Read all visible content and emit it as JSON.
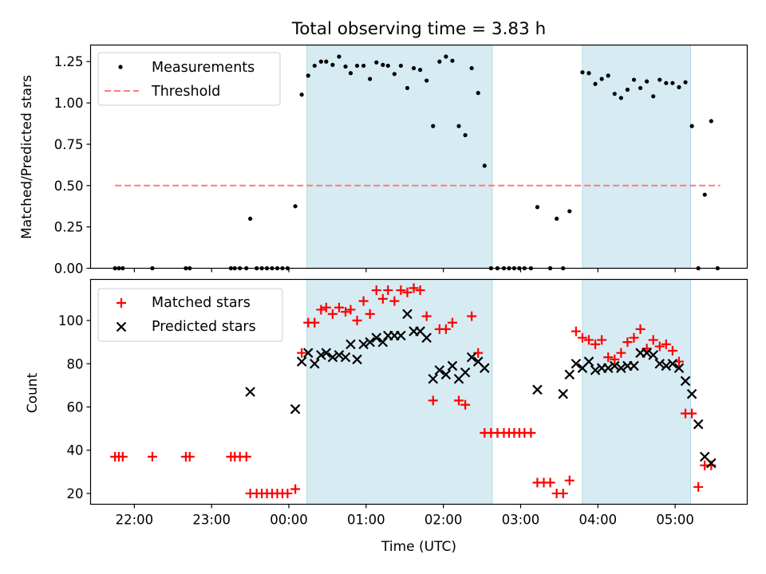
{
  "chart_data": [
    {
      "type": "scatter",
      "title": "Total observing time = 3.83 h",
      "xlabel": "",
      "ylabel": "Matched/Predicted stars",
      "xlim": [
        "21:26",
        "05:56"
      ],
      "ylim": [
        0,
        1.35
      ],
      "y_ticks": [
        0.0,
        0.25,
        0.5,
        0.75,
        1.0,
        1.25
      ],
      "y_tick_labels": [
        "0.00",
        "0.25",
        "0.50",
        "0.75",
        "1.00",
        "1.25"
      ],
      "x_ticks": [
        "22:00",
        "23:00",
        "00:00",
        "01:00",
        "02:00",
        "03:00",
        "04:00",
        "05:00"
      ],
      "x_tick_labels_visible": false,
      "legend": {
        "placement": "upper-left",
        "entries": [
          "Measurements",
          "Threshold"
        ]
      },
      "shaded_intervals": [
        [
          "00:14",
          "02:38"
        ],
        [
          "03:48",
          "05:12"
        ]
      ],
      "threshold": {
        "name": "Threshold",
        "value": 0.5,
        "x_range": [
          "21:45",
          "05:35"
        ],
        "color": "#ff7b7b",
        "style": "dashed"
      },
      "series": [
        {
          "name": "Measurements",
          "color": "#000000",
          "points": [
            [
              "21:45",
              0
            ],
            [
              "21:48",
              0
            ],
            [
              "21:51",
              0
            ],
            [
              "22:14",
              0
            ],
            [
              "22:40",
              0
            ],
            [
              "22:43",
              0
            ],
            [
              "23:15",
              0
            ],
            [
              "23:18",
              0
            ],
            [
              "23:22",
              0
            ],
            [
              "23:27",
              0
            ],
            [
              "23:30",
              0.3
            ],
            [
              "23:35",
              0
            ],
            [
              "23:39",
              0
            ],
            [
              "23:43",
              0
            ],
            [
              "23:47",
              0
            ],
            [
              "23:51",
              0
            ],
            [
              "23:55",
              0
            ],
            [
              "23:59",
              0
            ],
            [
              "00:05",
              0.375
            ],
            [
              "00:10",
              1.05
            ],
            [
              "00:15",
              1.165
            ],
            [
              "00:20",
              1.225
            ],
            [
              "00:25",
              1.25
            ],
            [
              "00:29",
              1.25
            ],
            [
              "00:34",
              1.23
            ],
            [
              "00:39",
              1.28
            ],
            [
              "00:44",
              1.22
            ],
            [
              "00:48",
              1.18
            ],
            [
              "00:53",
              1.225
            ],
            [
              "00:58",
              1.225
            ],
            [
              "01:03",
              1.145
            ],
            [
              "01:08",
              1.245
            ],
            [
              "01:13",
              1.23
            ],
            [
              "01:17",
              1.225
            ],
            [
              "01:22",
              1.175
            ],
            [
              "01:27",
              1.225
            ],
            [
              "01:32",
              1.09
            ],
            [
              "01:37",
              1.21
            ],
            [
              "01:42",
              1.2
            ],
            [
              "01:47",
              1.135
            ],
            [
              "01:52",
              0.86
            ],
            [
              "01:57",
              1.25
            ],
            [
              "02:02",
              1.28
            ],
            [
              "02:07",
              1.255
            ],
            [
              "02:12",
              0.86
            ],
            [
              "02:17",
              0.805
            ],
            [
              "02:22",
              1.21
            ],
            [
              "02:27",
              1.06
            ],
            [
              "02:32",
              0.62
            ],
            [
              "02:37",
              0
            ],
            [
              "02:42",
              0
            ],
            [
              "02:47",
              0
            ],
            [
              "02:51",
              0
            ],
            [
              "02:55",
              0
            ],
            [
              "02:59",
              0
            ],
            [
              "03:03",
              0
            ],
            [
              "03:08",
              0
            ],
            [
              "03:13",
              0.37
            ],
            [
              "03:23",
              0
            ],
            [
              "03:28",
              0.3
            ],
            [
              "03:33",
              0
            ],
            [
              "03:38",
              0.345
            ],
            [
              "03:48",
              1.185
            ],
            [
              "03:53",
              1.18
            ],
            [
              "03:58",
              1.115
            ],
            [
              "04:03",
              1.145
            ],
            [
              "04:08",
              1.165
            ],
            [
              "04:13",
              1.055
            ],
            [
              "04:18",
              1.03
            ],
            [
              "04:23",
              1.08
            ],
            [
              "04:28",
              1.14
            ],
            [
              "04:33",
              1.09
            ],
            [
              "04:38",
              1.13
            ],
            [
              "04:43",
              1.04
            ],
            [
              "04:48",
              1.14
            ],
            [
              "04:53",
              1.12
            ],
            [
              "04:58",
              1.12
            ],
            [
              "05:03",
              1.095
            ],
            [
              "05:08",
              1.125
            ],
            [
              "05:13",
              0.86
            ],
            [
              "05:18",
              0
            ],
            [
              "05:23",
              0.445
            ],
            [
              "05:28",
              0.89
            ],
            [
              "05:33",
              0
            ]
          ]
        }
      ]
    },
    {
      "type": "scatter",
      "title": "",
      "xlabel": "Time (UTC)",
      "ylabel": "Count",
      "xlim": [
        "21:26",
        "05:56"
      ],
      "ylim": [
        15,
        119
      ],
      "y_ticks": [
        20,
        40,
        60,
        80,
        100
      ],
      "y_tick_labels": [
        "20",
        "40",
        "60",
        "80",
        "100"
      ],
      "x_ticks": [
        "22:00",
        "23:00",
        "00:00",
        "01:00",
        "02:00",
        "03:00",
        "04:00",
        "05:00"
      ],
      "x_tick_labels": [
        "22:00",
        "23:00",
        "00:00",
        "01:00",
        "02:00",
        "03:00",
        "04:00",
        "05:00"
      ],
      "legend": {
        "placement": "upper-left",
        "entries": [
          "Matched stars",
          "Predicted stars"
        ]
      },
      "shaded_intervals": [
        [
          "00:14",
          "02:38"
        ],
        [
          "03:48",
          "05:12"
        ]
      ],
      "series": [
        {
          "name": "Matched stars",
          "marker": "plus",
          "color": "#ff0000",
          "points": [
            [
              "21:45",
              37
            ],
            [
              "21:48",
              37
            ],
            [
              "21:51",
              37
            ],
            [
              "22:14",
              37
            ],
            [
              "22:40",
              37
            ],
            [
              "22:43",
              37
            ],
            [
              "23:15",
              37
            ],
            [
              "23:18",
              37
            ],
            [
              "23:22",
              37
            ],
            [
              "23:27",
              37
            ],
            [
              "23:30",
              20
            ],
            [
              "23:35",
              20
            ],
            [
              "23:39",
              20
            ],
            [
              "23:43",
              20
            ],
            [
              "23:47",
              20
            ],
            [
              "23:51",
              20
            ],
            [
              "23:55",
              20
            ],
            [
              "23:59",
              20
            ],
            [
              "00:05",
              22
            ],
            [
              "00:10",
              85
            ],
            [
              "00:15",
              99
            ],
            [
              "00:20",
              99
            ],
            [
              "00:25",
              105
            ],
            [
              "00:29",
              106
            ],
            [
              "00:34",
              103
            ],
            [
              "00:39",
              106
            ],
            [
              "00:44",
              104
            ],
            [
              "00:48",
              105
            ],
            [
              "00:53",
              100
            ],
            [
              "00:58",
              109
            ],
            [
              "01:03",
              103
            ],
            [
              "01:08",
              114
            ],
            [
              "01:13",
              110
            ],
            [
              "01:17",
              114
            ],
            [
              "01:22",
              109
            ],
            [
              "01:27",
              114
            ],
            [
              "01:32",
              113
            ],
            [
              "01:37",
              115
            ],
            [
              "01:42",
              114
            ],
            [
              "01:47",
              102
            ],
            [
              "01:52",
              63
            ],
            [
              "01:57",
              96
            ],
            [
              "02:02",
              96
            ],
            [
              "02:07",
              99
            ],
            [
              "02:12",
              63
            ],
            [
              "02:17",
              61
            ],
            [
              "02:22",
              102
            ],
            [
              "02:27",
              85
            ],
            [
              "02:32",
              48
            ],
            [
              "02:37",
              48
            ],
            [
              "02:42",
              48
            ],
            [
              "02:47",
              48
            ],
            [
              "02:51",
              48
            ],
            [
              "02:55",
              48
            ],
            [
              "02:59",
              48
            ],
            [
              "03:03",
              48
            ],
            [
              "03:08",
              48
            ],
            [
              "03:13",
              25
            ],
            [
              "03:18",
              25
            ],
            [
              "03:23",
              25
            ],
            [
              "03:28",
              20
            ],
            [
              "03:33",
              20
            ],
            [
              "03:38",
              26
            ],
            [
              "03:43",
              95
            ],
            [
              "03:48",
              92
            ],
            [
              "03:53",
              91
            ],
            [
              "03:58",
              89
            ],
            [
              "04:03",
              91
            ],
            [
              "04:08",
              83
            ],
            [
              "04:13",
              82
            ],
            [
              "04:18",
              85
            ],
            [
              "04:23",
              90
            ],
            [
              "04:28",
              92
            ],
            [
              "04:33",
              96
            ],
            [
              "04:38",
              87
            ],
            [
              "04:43",
              91
            ],
            [
              "04:48",
              88
            ],
            [
              "04:53",
              89
            ],
            [
              "04:58",
              86
            ],
            [
              "05:03",
              81
            ],
            [
              "05:08",
              57
            ],
            [
              "05:13",
              57
            ],
            [
              "05:18",
              23
            ],
            [
              "05:23",
              33
            ],
            [
              "05:28",
              33
            ]
          ]
        },
        {
          "name": "Predicted stars",
          "marker": "x",
          "color": "#000000",
          "points": [
            [
              "23:30",
              67
            ],
            [
              "00:05",
              59
            ],
            [
              "00:10",
              81
            ],
            [
              "00:15",
              85
            ],
            [
              "00:20",
              80
            ],
            [
              "00:25",
              84
            ],
            [
              "00:29",
              85
            ],
            [
              "00:34",
              83
            ],
            [
              "00:39",
              84
            ],
            [
              "00:44",
              83
            ],
            [
              "00:48",
              89
            ],
            [
              "00:53",
              82
            ],
            [
              "00:58",
              89
            ],
            [
              "01:03",
              90
            ],
            [
              "01:08",
              92
            ],
            [
              "01:13",
              90
            ],
            [
              "01:17",
              93
            ],
            [
              "01:22",
              93
            ],
            [
              "01:27",
              93
            ],
            [
              "01:32",
              103
            ],
            [
              "01:37",
              95
            ],
            [
              "01:42",
              95
            ],
            [
              "01:47",
              92
            ],
            [
              "01:52",
              73
            ],
            [
              "01:57",
              77
            ],
            [
              "02:02",
              75
            ],
            [
              "02:07",
              79
            ],
            [
              "02:12",
              73
            ],
            [
              "02:17",
              76
            ],
            [
              "02:22",
              83
            ],
            [
              "02:27",
              81
            ],
            [
              "02:32",
              78
            ],
            [
              "03:13",
              68
            ],
            [
              "03:33",
              66
            ],
            [
              "03:38",
              75
            ],
            [
              "03:43",
              80
            ],
            [
              "03:48",
              78
            ],
            [
              "03:53",
              81
            ],
            [
              "03:58",
              77
            ],
            [
              "04:03",
              78
            ],
            [
              "04:08",
              78
            ],
            [
              "04:13",
              79
            ],
            [
              "04:18",
              78
            ],
            [
              "04:23",
              79
            ],
            [
              "04:28",
              79
            ],
            [
              "04:33",
              85
            ],
            [
              "04:38",
              85
            ],
            [
              "04:43",
              84
            ],
            [
              "04:48",
              80
            ],
            [
              "04:53",
              79
            ],
            [
              "04:58",
              80
            ],
            [
              "05:03",
              78
            ],
            [
              "05:08",
              72
            ],
            [
              "05:13",
              66
            ],
            [
              "05:18",
              52
            ],
            [
              "05:23",
              37
            ],
            [
              "05:28",
              34
            ]
          ]
        }
      ]
    }
  ],
  "colors": {
    "shade": "#add8e6",
    "background": "#ffffff",
    "axes": "#000000"
  }
}
